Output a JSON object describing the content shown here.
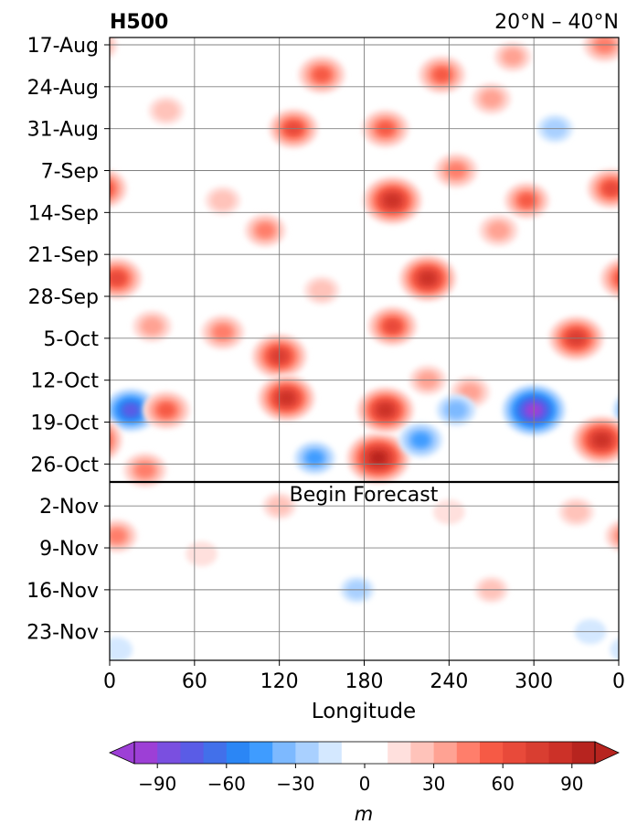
{
  "chart_data": {
    "type": "heatmap",
    "title_left": "H500",
    "title_right": "20°N – 40°N",
    "xlabel": "Longitude",
    "x_ticks": [
      "0",
      "60",
      "120",
      "180",
      "240",
      "300",
      "0"
    ],
    "y_ticks": [
      "17-Aug",
      "24-Aug",
      "31-Aug",
      "7-Sep",
      "14-Sep",
      "21-Sep",
      "28-Sep",
      "5-Oct",
      "12-Oct",
      "19-Oct",
      "26-Oct",
      "2-Nov",
      "9-Nov",
      "16-Nov",
      "23-Nov"
    ],
    "forecast_label": "Begin Forecast",
    "forecast_start": "29-Oct",
    "grid": true,
    "colorbar": {
      "label": "m",
      "ticks": [
        "−90",
        "−60",
        "−30",
        "0",
        "30",
        "60",
        "90"
      ],
      "levels": [
        -100,
        -90,
        -80,
        -70,
        -60,
        -50,
        -40,
        -30,
        -20,
        -10,
        10,
        20,
        30,
        40,
        50,
        60,
        70,
        80,
        90,
        100
      ],
      "colors": [
        "#9d3fd6",
        "#7a4fe0",
        "#5a5ce6",
        "#4270ea",
        "#2b86f5",
        "#3f9cff",
        "#7db9ff",
        "#a9d0ff",
        "#d4e8ff",
        "#ffffff",
        "#ffe0dd",
        "#ffc3ba",
        "#ffa293",
        "#ff7e6b",
        "#f65a45",
        "#e84a3a",
        "#d93e31",
        "#cc3128",
        "#b7241f"
      ],
      "extend": "both"
    },
    "anomalies": [
      {
        "lon": 5,
        "date": "25-Sep",
        "value": 65
      },
      {
        "lon": 30,
        "date": "3-Oct",
        "value": 35
      },
      {
        "lon": 15,
        "date": "17-Oct",
        "value": -70
      },
      {
        "lon": 40,
        "date": "17-Oct",
        "value": 55
      },
      {
        "lon": 25,
        "date": "27-Oct",
        "value": 45
      },
      {
        "lon": 40,
        "date": "28-Aug",
        "value": 25
      },
      {
        "lon": 80,
        "date": "4-Oct",
        "value": 45
      },
      {
        "lon": 80,
        "date": "12-Sep",
        "value": 25
      },
      {
        "lon": 120,
        "date": "8-Oct",
        "value": 75
      },
      {
        "lon": 125,
        "date": "15-Oct",
        "value": 80
      },
      {
        "lon": 130,
        "date": "31-Aug",
        "value": 60
      },
      {
        "lon": 110,
        "date": "17-Sep",
        "value": 40
      },
      {
        "lon": 150,
        "date": "27-Sep",
        "value": 25
      },
      {
        "lon": 150,
        "date": "22-Aug",
        "value": 55
      },
      {
        "lon": 145,
        "date": "25-Oct",
        "value": -40
      },
      {
        "lon": 190,
        "date": "25-Oct",
        "value": 95
      },
      {
        "lon": 195,
        "date": "17-Oct",
        "value": 80
      },
      {
        "lon": 200,
        "date": "12-Sep",
        "value": 85
      },
      {
        "lon": 195,
        "date": "31-Aug",
        "value": 55
      },
      {
        "lon": 200,
        "date": "3-Oct",
        "value": 60
      },
      {
        "lon": 225,
        "date": "25-Sep",
        "value": 80
      },
      {
        "lon": 235,
        "date": "22-Aug",
        "value": 55
      },
      {
        "lon": 245,
        "date": "7-Sep",
        "value": 45
      },
      {
        "lon": 225,
        "date": "12-Oct",
        "value": 30
      },
      {
        "lon": 220,
        "date": "22-Oct",
        "value": -45
      },
      {
        "lon": 255,
        "date": "14-Oct",
        "value": 35
      },
      {
        "lon": 245,
        "date": "17-Oct",
        "value": -35
      },
      {
        "lon": 270,
        "date": "26-Aug",
        "value": 35
      },
      {
        "lon": 275,
        "date": "17-Sep",
        "value": 35
      },
      {
        "lon": 285,
        "date": "19-Aug",
        "value": 30
      },
      {
        "lon": 295,
        "date": "12-Sep",
        "value": 50
      },
      {
        "lon": 300,
        "date": "17-Oct",
        "value": -95
      },
      {
        "lon": 330,
        "date": "5-Oct",
        "value": 75
      },
      {
        "lon": 348,
        "date": "22-Oct",
        "value": 85
      },
      {
        "lon": 350,
        "date": "17-Aug",
        "value": 45
      },
      {
        "lon": 355,
        "date": "10-Sep",
        "value": 60
      },
      {
        "lon": 315,
        "date": "31-Aug",
        "value": -25
      },
      {
        "lon": 5,
        "date": "7-Nov",
        "value": 40
      },
      {
        "lon": 65,
        "date": "10-Nov",
        "value": 15
      },
      {
        "lon": 120,
        "date": "2-Nov",
        "value": 20
      },
      {
        "lon": 175,
        "date": "16-Nov",
        "value": -20
      },
      {
        "lon": 240,
        "date": "3-Nov",
        "value": 15
      },
      {
        "lon": 270,
        "date": "16-Nov",
        "value": 20
      },
      {
        "lon": 330,
        "date": "3-Nov",
        "value": 25
      },
      {
        "lon": 340,
        "date": "23-Nov",
        "value": -15
      },
      {
        "lon": 5,
        "date": "26-Nov",
        "value": -15
      }
    ]
  }
}
